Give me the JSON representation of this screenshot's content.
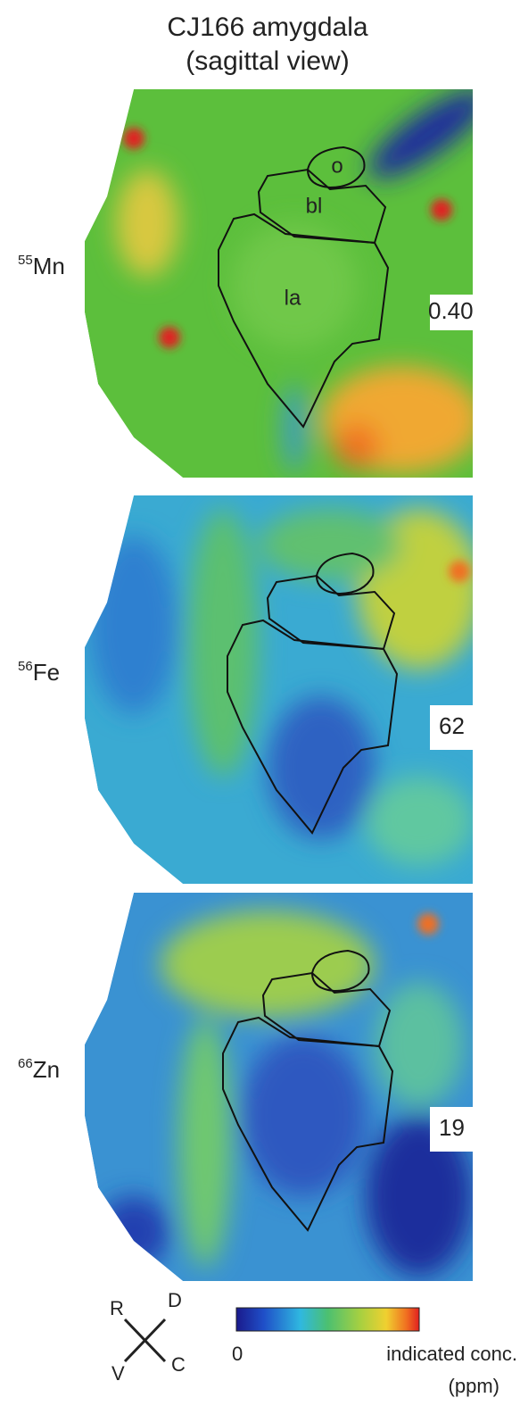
{
  "title": [
    "CJ166 amygdala",
    "(sagittal view)"
  ],
  "panels": [
    {
      "mass": "55",
      "element": "Mn",
      "max": "0.40",
      "regions": [
        "o",
        "bl",
        "la"
      ]
    },
    {
      "mass": "56",
      "element": "Fe",
      "max": "62"
    },
    {
      "mass": "66",
      "element": "Zn",
      "max": "19"
    }
  ],
  "orientation": {
    "rostral": "R",
    "dorsal": "D",
    "ventral": "V",
    "caudal": "C"
  },
  "colorbar": {
    "min": "0",
    "label": "indicated conc.",
    "unit": "(ppm)"
  }
}
